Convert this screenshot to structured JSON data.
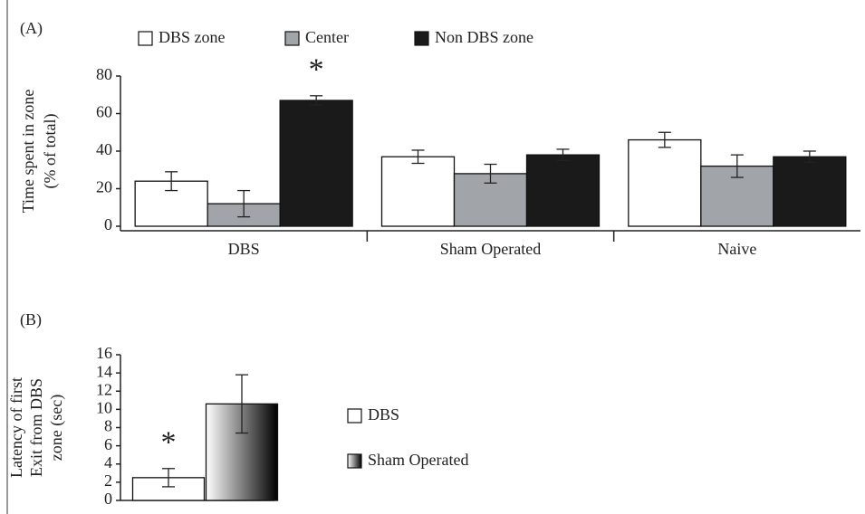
{
  "chart_data": [
    {
      "type": "bar",
      "label": "(A)",
      "ylabel": [
        "Time spent in zone",
        "(% of total)"
      ],
      "categories": [
        "DBS",
        "Sham Operated",
        "Naive"
      ],
      "series": [
        {
          "name": "DBS zone",
          "color": "#ffffff",
          "values": [
            24,
            37,
            46
          ],
          "errors": [
            5,
            3.5,
            4
          ]
        },
        {
          "name": "Center",
          "color": "#a1a5a9",
          "values": [
            12,
            28,
            32
          ],
          "errors": [
            7,
            5,
            6
          ]
        },
        {
          "name": "Non DBS zone",
          "color": "#1a1a1a",
          "values": [
            67,
            38,
            37
          ],
          "errors": [
            2.5,
            3,
            3
          ]
        }
      ],
      "ylim": [
        0,
        80
      ],
      "yticks": [
        0,
        20,
        40,
        60,
        80
      ],
      "annotations": [
        {
          "text": "*",
          "category": "DBS",
          "series": "Non DBS zone"
        }
      ]
    },
    {
      "type": "bar",
      "label": "(B)",
      "ylabel": [
        "Latency of first",
        "Exit from DBS",
        "zone  (sec)"
      ],
      "categories": [
        null
      ],
      "series": [
        {
          "name": "DBS",
          "color": "#ffffff",
          "values": [
            2.5
          ],
          "errors": [
            1
          ]
        },
        {
          "name": "Sham Operated",
          "color": "#000000",
          "gradient": true,
          "values": [
            10.6
          ],
          "errors": [
            3.2
          ]
        }
      ],
      "ylim": [
        0,
        16
      ],
      "yticks": [
        0,
        2,
        4,
        6,
        8,
        10,
        12,
        14,
        16
      ],
      "annotations": [
        {
          "text": "*",
          "category": null,
          "series": "DBS"
        }
      ]
    }
  ]
}
